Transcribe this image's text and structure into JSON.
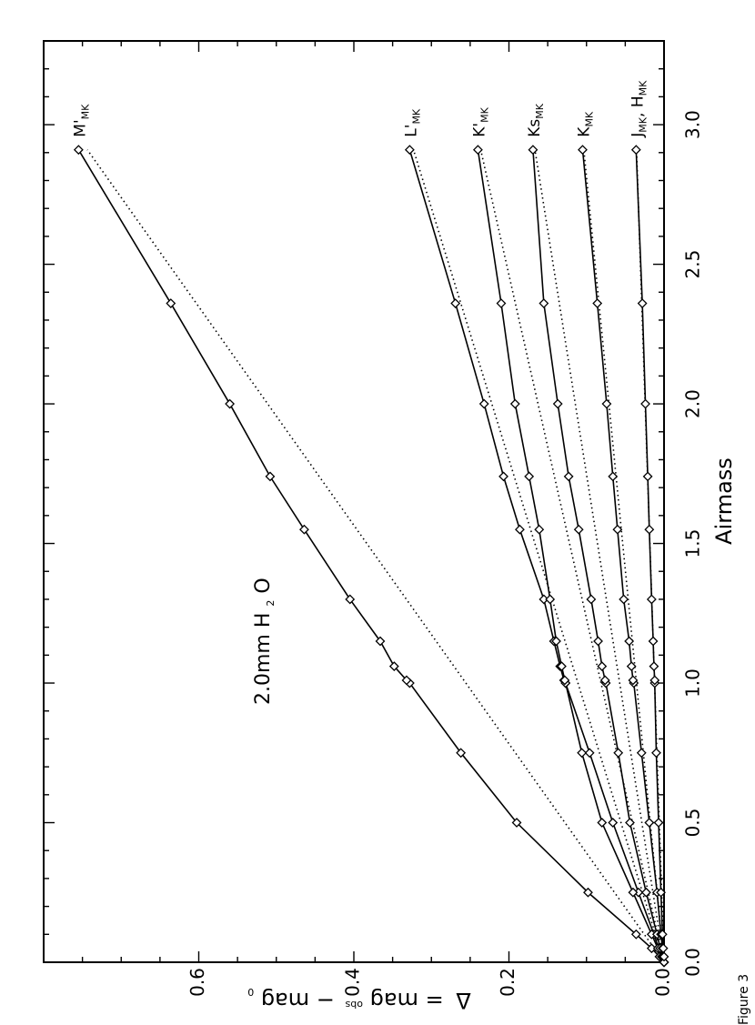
{
  "chart_data": {
    "type": "line",
    "title": "",
    "xlabel": "Airmass",
    "ylabel_parts": {
      "delta": "Δ",
      "eq": "= mag",
      "sup": "obs",
      "minus": "− mag",
      "sub": "0"
    },
    "xlim": [
      0.0,
      3.3
    ],
    "ylim": [
      0.0,
      0.8
    ],
    "x_ticks": [
      "0.0",
      "0.5",
      "1.0",
      "1.5",
      "2.0",
      "2.5",
      "3.0"
    ],
    "y_ticks": [
      "0.0",
      "0.2",
      "0.4",
      "0.6"
    ],
    "annotation": {
      "pre": "2.0mm H",
      "sub": "2",
      "post": "O"
    },
    "caption": "Figure 3",
    "marker": "diamond",
    "fit_style": "dotted",
    "x": [
      0.0,
      0.02,
      0.05,
      0.1,
      0.25,
      0.5,
      0.75,
      1.0,
      1.01,
      1.06,
      1.15,
      1.3,
      1.55,
      1.74,
      2.0,
      2.36,
      2.91
    ],
    "series": [
      {
        "label": {
          "main": "M'",
          "sub": "MK"
        },
        "values": [
          0.0,
          0.006,
          0.016,
          0.036,
          0.098,
          0.19,
          0.262,
          0.328,
          0.332,
          0.348,
          0.366,
          0.405,
          0.464,
          0.508,
          0.56,
          0.636,
          0.755
        ]
      },
      {
        "label": {
          "main": "L'",
          "sub": "MK"
        },
        "values": [
          0.0,
          0.002,
          0.007,
          0.013,
          0.033,
          0.066,
          0.096,
          0.127,
          0.129,
          0.134,
          0.142,
          0.155,
          0.186,
          0.207,
          0.232,
          0.269,
          0.328
        ]
      },
      {
        "label": {
          "main": "K'",
          "sub": "MK"
        },
        "values": [
          0.0,
          0.003,
          0.008,
          0.016,
          0.04,
          0.08,
          0.106,
          0.127,
          0.128,
          0.132,
          0.139,
          0.147,
          0.161,
          0.174,
          0.192,
          0.21,
          0.24
        ]
      },
      {
        "label": {
          "main": "Ks",
          "sub": "MK"
        },
        "values": [
          0.0,
          0.002,
          0.005,
          0.009,
          0.023,
          0.044,
          0.059,
          0.075,
          0.076,
          0.08,
          0.085,
          0.094,
          0.11,
          0.123,
          0.137,
          0.155,
          0.169
        ]
      },
      {
        "label": {
          "main": "K",
          "sub": "MK"
        },
        "values": [
          0.0,
          0.001,
          0.002,
          0.004,
          0.009,
          0.019,
          0.029,
          0.039,
          0.04,
          0.042,
          0.045,
          0.052,
          0.06,
          0.066,
          0.074,
          0.086,
          0.105
        ]
      },
      {
        "label": {
          "main": "J",
          "sub": "MK",
          "extra_main": "H",
          "extra_sub": "MK"
        },
        "values": [
          0.0,
          0.0,
          0.001,
          0.002,
          0.004,
          0.007,
          0.01,
          0.012,
          0.012,
          0.013,
          0.014,
          0.016,
          0.019,
          0.021,
          0.024,
          0.028,
          0.036
        ]
      }
    ]
  }
}
